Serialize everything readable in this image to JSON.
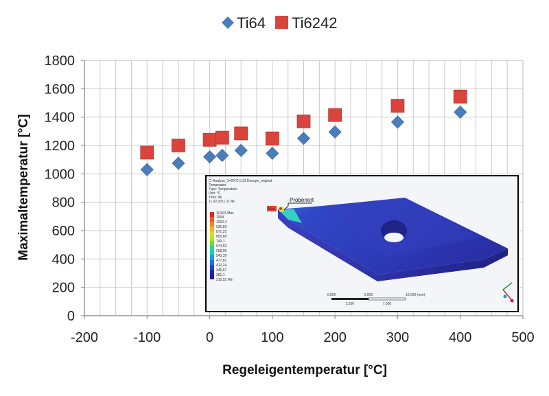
{
  "chart_data": {
    "type": "scatter",
    "xlabel": "Regeleigentemperatur [°C]",
    "ylabel": "Maximaltemperatur  [°C]",
    "xlim": [
      -200,
      500
    ],
    "ylim": [
      0,
      1800
    ],
    "x_ticks": [
      "-200",
      "-100",
      "0",
      "100",
      "200",
      "300",
      "400",
      "500"
    ],
    "y_ticks": [
      "0",
      "200",
      "400",
      "600",
      "800",
      "1000",
      "1200",
      "1400",
      "1600",
      "1800"
    ],
    "grid": true,
    "legend_position": "top-center",
    "series": [
      {
        "name": "Ti64",
        "marker": "diamond",
        "color": "#4a7ebb",
        "points": [
          {
            "x": -100,
            "y": 1030
          },
          {
            "x": -50,
            "y": 1075
          },
          {
            "x": 0,
            "y": 1120
          },
          {
            "x": 20,
            "y": 1130
          },
          {
            "x": 50,
            "y": 1165
          },
          {
            "x": 100,
            "y": 1145
          },
          {
            "x": 150,
            "y": 1250
          },
          {
            "x": 200,
            "y": 1295
          },
          {
            "x": 300,
            "y": 1365
          },
          {
            "x": 400,
            "y": 1435
          }
        ]
      },
      {
        "name": "Ti6242",
        "marker": "square",
        "color": "#d9443d",
        "points": [
          {
            "x": -100,
            "y": 1150
          },
          {
            "x": -50,
            "y": 1200
          },
          {
            "x": 0,
            "y": 1240
          },
          {
            "x": 20,
            "y": 1255
          },
          {
            "x": 50,
            "y": 1285
          },
          {
            "x": 100,
            "y": 1250
          },
          {
            "x": 150,
            "y": 1370
          },
          {
            "x": 200,
            "y": 1415
          },
          {
            "x": 300,
            "y": 1480
          },
          {
            "x": 400,
            "y": 1545
          }
        ]
      }
    ]
  },
  "inset": {
    "title_lines": [
      "C: Analyse_1=20°C 0,33 Energie_original",
      "Temperatur",
      "Type: Temperature",
      "Unit: °C",
      "Time: 46",
      "11.02.2011 11:46"
    ],
    "probe_label": "Probenort",
    "max_label": "1133,5 Max",
    "min_label": "215,52 Min",
    "legend_values": [
      "1068",
      "1002,4",
      "936,82",
      "871,25",
      "805,68",
      "740,1",
      "674,53",
      "608,96",
      "543,39",
      "477,81",
      "412,24",
      "346,67",
      "281,1"
    ],
    "scale_top": [
      "0,000",
      "5,000",
      "10,000 (mm)"
    ],
    "scale_bottom": [
      "2,500",
      "7,500"
    ]
  }
}
